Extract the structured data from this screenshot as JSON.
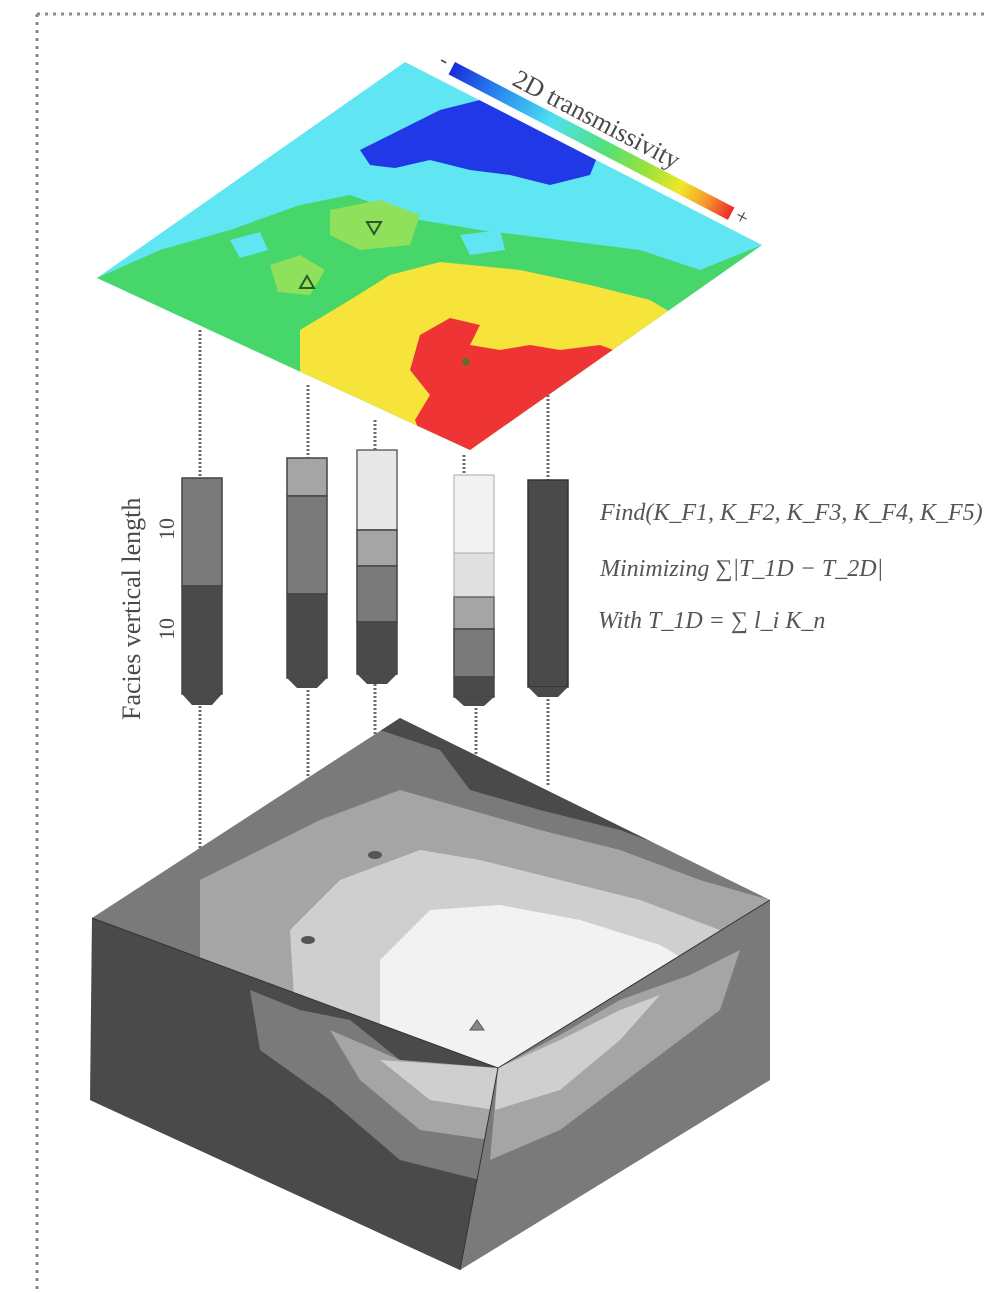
{
  "colorbar": {
    "title": "2D transmissivity",
    "min_label": "-",
    "max_label": "+",
    "colors": [
      "#1a2bd9",
      "#2a8ff0",
      "#4fe0f0",
      "#52e07a",
      "#9be23a",
      "#f2e62a",
      "#f59a2a",
      "#ef2a2a"
    ]
  },
  "map_colors": {
    "cyan": "#5fe6f2",
    "green": "#46d66a",
    "light_green": "#8fe05a",
    "yellow": "#f6e43a",
    "red": "#ee3434",
    "blue": "#2038e6"
  },
  "facies_axis": {
    "label": "Facies vertical length",
    "ticks": [
      "10",
      "10"
    ]
  },
  "facies_colors": {
    "f1": "#4a4a4a",
    "f2": "#7a7a7a",
    "f3": "#a5a5a5",
    "f4": "#cfcfcf",
    "f5": "#f2f2f2"
  },
  "formula": {
    "line1": "Find(K_F1, K_F2, K_F3, K_F4, K_F5)",
    "line2": "Minimizing ∑|T_1D − T_2D|",
    "line3": "With T_1D = ∑ l_i K_n"
  }
}
